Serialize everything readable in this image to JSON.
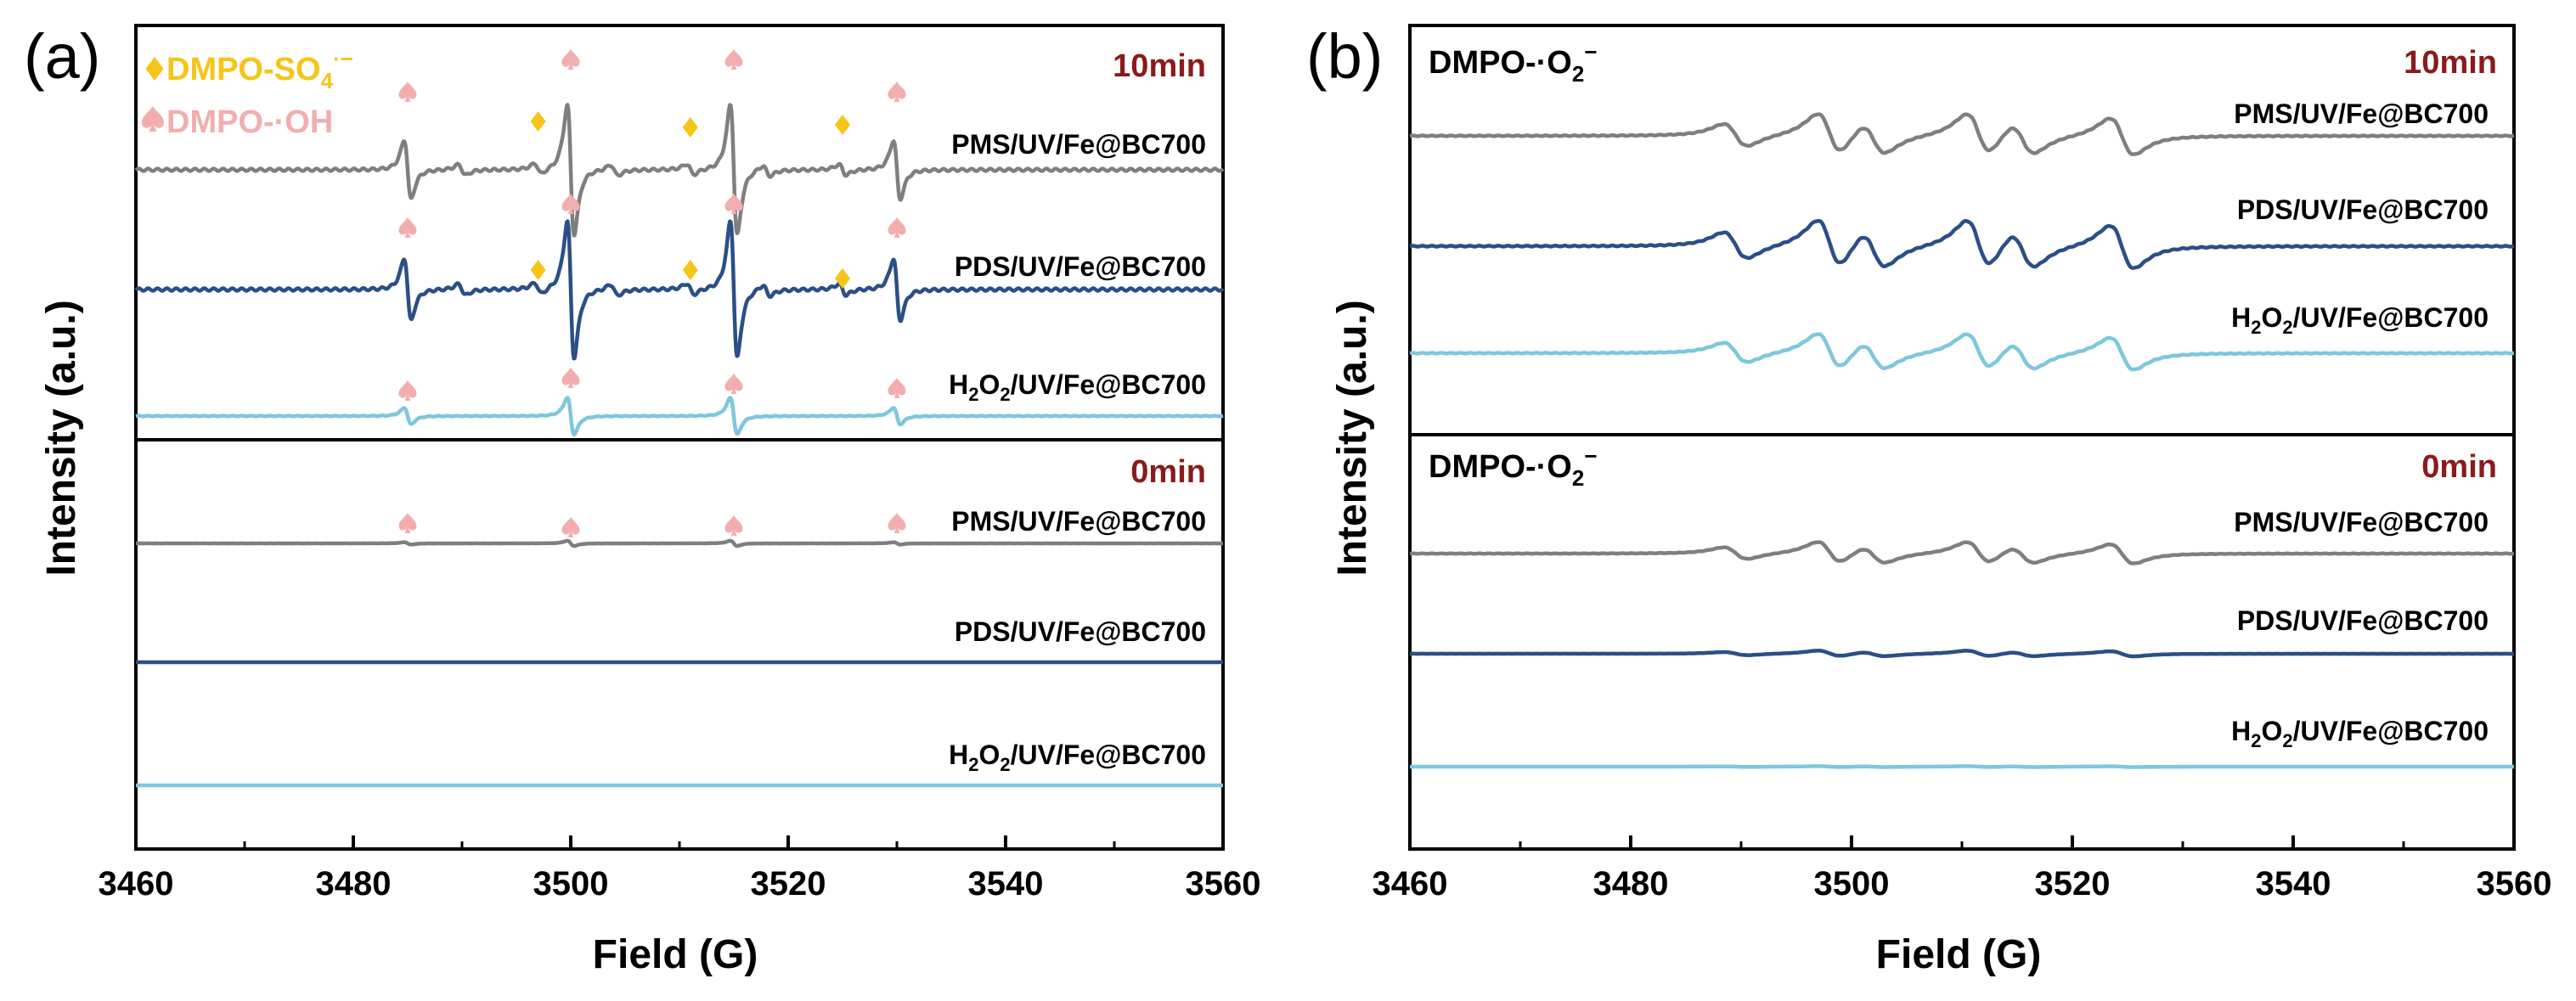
{
  "figure": {
    "ylabel": "Intensity (a.u.)",
    "xlabel": "Field (G)",
    "x_ticks": [
      3460,
      3480,
      3500,
      3520,
      3540,
      3560
    ]
  },
  "colors": {
    "gray": "#7f7f7f",
    "navy": "#2b4f86",
    "light": "#7ec7dc",
    "time": "#8b1a1a",
    "diamond": "#f5c518",
    "spade": "#f2aeae",
    "axis": "#000000"
  },
  "legend": {
    "so4_label": "DMPO-SO",
    "so4_sub": "4",
    "so4_sup": "·−",
    "oh_label": "DMPO-·OH"
  },
  "chart_data": [
    {
      "panel": "(a)",
      "type": "line",
      "xlim": [
        3460,
        3560
      ],
      "subplots": [
        {
          "time": "10min",
          "series": [
            {
              "name": "PMS/UV/Fe@BC700",
              "label_main": "PMS/UV/Fe@BC700",
              "color": "gray",
              "spin": "OH+SO4",
              "amp": 1.0
            },
            {
              "name": "PDS/UV/Fe@BC700",
              "label_main": "PDS/UV/Fe@BC700",
              "color": "navy",
              "spin": "OH+SO4",
              "amp": 1.05
            },
            {
              "name": "H2O2/UV/Fe@BC700",
              "label_h2o2": true,
              "color": "light",
              "spin": "OH",
              "amp": 0.28
            }
          ],
          "oh_peaks_G": [
            3485,
            3500,
            3515,
            3530
          ],
          "so4_peaks_G": [
            3497,
            3511,
            3525
          ]
        },
        {
          "time": "0min",
          "series": [
            {
              "name": "PMS/UV/Fe@BC700",
              "label_main": "PMS/UV/Fe@BC700",
              "color": "gray",
              "spin": "OH",
              "amp": 0.04
            },
            {
              "name": "PDS/UV/Fe@BC700",
              "label_main": "PDS/UV/Fe@BC700",
              "color": "navy",
              "spin": "none",
              "amp": 0
            },
            {
              "name": "H2O2/UV/Fe@BC700",
              "label_h2o2": true,
              "color": "light",
              "spin": "none",
              "amp": 0
            }
          ]
        }
      ]
    },
    {
      "panel": "(b)",
      "type": "line",
      "xlim": [
        3460,
        3560
      ],
      "subplots": [
        {
          "time": "10min",
          "species": "DMPO-·O",
          "species_sub": "2",
          "species_sup": "−",
          "series": [
            {
              "name": "PMS/UV/Fe@BC700",
              "label_main": "PMS/UV/Fe@BC700",
              "color": "gray",
              "spin": "O2",
              "amp": 0.85
            },
            {
              "name": "PDS/UV/Fe@BC700",
              "label_main": "PDS/UV/Fe@BC700",
              "color": "navy",
              "spin": "O2",
              "amp": 1.0
            },
            {
              "name": "H2O2/UV/Fe@BC700",
              "label_h2o2": true,
              "color": "light",
              "spin": "O2",
              "amp": 0.75
            }
          ]
        },
        {
          "time": "0min",
          "species": "DMPO-·O",
          "species_sub": "2",
          "species_sup": "−",
          "series": [
            {
              "name": "PMS/UV/Fe@BC700",
              "label_main": "PMS/UV/Fe@BC700",
              "color": "gray",
              "spin": "O2",
              "amp": 0.45
            },
            {
              "name": "PDS/UV/Fe@BC700",
              "label_main": "PDS/UV/Fe@BC700",
              "color": "navy",
              "spin": "O2",
              "amp": 0.12
            },
            {
              "name": "H2O2/UV/Fe@BC700",
              "label_h2o2": true,
              "color": "light",
              "spin": "O2",
              "amp": 0.02
            }
          ]
        }
      ]
    }
  ]
}
